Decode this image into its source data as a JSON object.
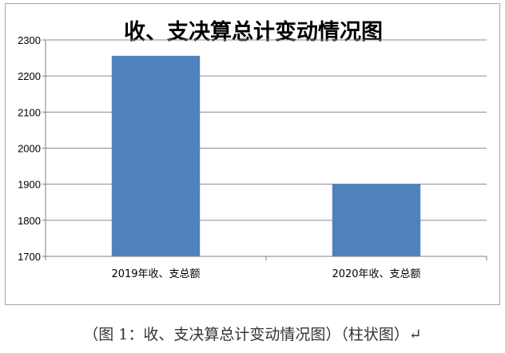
{
  "chart_data": {
    "type": "bar",
    "title": "收、支决算总计变动情况图",
    "categories": [
      "2019年收、支总额",
      "2020年收、支总额"
    ],
    "values": [
      2256,
      1901
    ],
    "ylim": [
      1700,
      2300
    ],
    "yticks": [
      1700,
      1800,
      1900,
      2000,
      2100,
      2200,
      2300
    ],
    "grid": true,
    "bar_color": "#4f81bd",
    "gridline_color": "#8c8c8c"
  },
  "caption": "（图 1：收、支决算总计变动情况图）（柱状图）↵"
}
